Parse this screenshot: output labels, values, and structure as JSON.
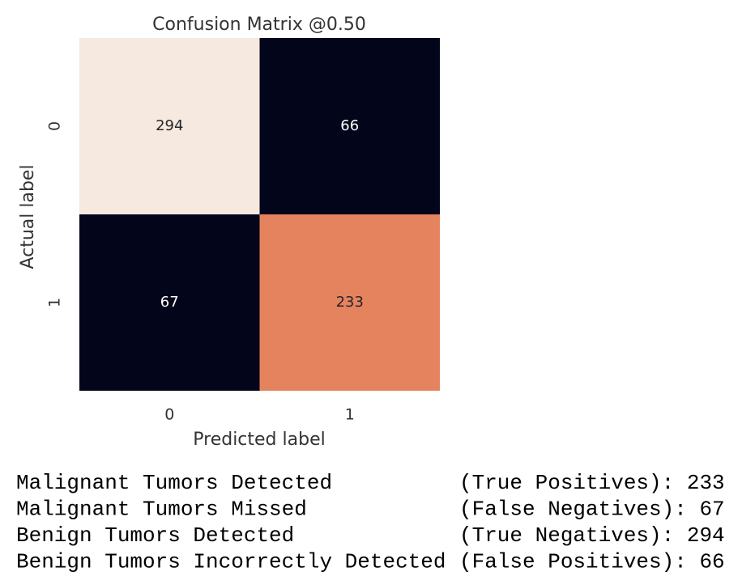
{
  "chart_data": {
    "type": "heatmap",
    "title": "Confusion Matrix @0.50",
    "xlabel": "Predicted label",
    "ylabel": "Actual label",
    "xcategories": [
      "0",
      "1"
    ],
    "ycategories": [
      "0",
      "1"
    ],
    "values": [
      [
        294,
        66
      ],
      [
        67,
        233
      ]
    ],
    "colors": [
      [
        "#f6e9df",
        "#03051a"
      ],
      [
        "#03051a",
        "#e5835f"
      ]
    ]
  },
  "output": {
    "lines": [
      {
        "label": "Malignant Tumors Detected",
        "kind": "(True Positives):",
        "value": 233
      },
      {
        "label": "Malignant Tumors Missed",
        "kind": "(False Negatives):",
        "value": 67
      },
      {
        "label": "Benign Tumors Detected",
        "kind": "(True Negatives):",
        "value": 294
      },
      {
        "label": "Benign Tumors Incorrectly Detected",
        "kind": "(False Positives):",
        "value": 66
      }
    ]
  }
}
